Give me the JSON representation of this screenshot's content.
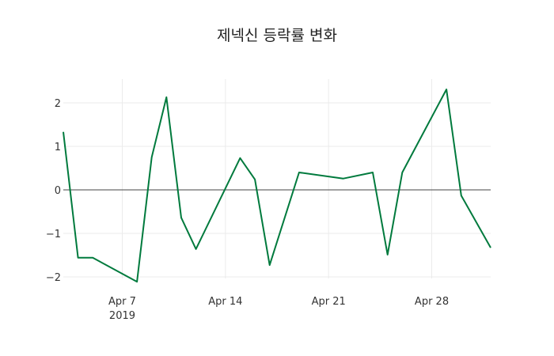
{
  "chart_data": {
    "type": "line",
    "title": "제넥신 등락률 변화",
    "xlabel": "",
    "ylabel": "",
    "x": [
      "2019-04-03",
      "2019-04-04",
      "2019-04-05",
      "2019-04-08",
      "2019-04-09",
      "2019-04-10",
      "2019-04-11",
      "2019-04-12",
      "2019-04-15",
      "2019-04-16",
      "2019-04-17",
      "2019-04-19",
      "2019-04-22",
      "2019-04-24",
      "2019-04-25",
      "2019-04-26",
      "2019-04-29",
      "2019-04-30",
      "2019-05-02"
    ],
    "series": [
      {
        "name": "등락률",
        "color": "#007a3d",
        "values": [
          1.33,
          -1.56,
          -1.56,
          -2.11,
          0.75,
          2.13,
          -0.64,
          -1.36,
          0.73,
          0.24,
          -1.73,
          0.4,
          0.26,
          0.4,
          -1.49,
          0.4,
          2.31,
          -0.13,
          -1.33
        ]
      }
    ],
    "xlim": [
      "2019-04-03",
      "2019-05-02"
    ],
    "ylim": [
      -2.3,
      2.6
    ],
    "xticks": [
      {
        "date": "2019-04-07",
        "label": "Apr 7",
        "sublabel": "2019"
      },
      {
        "date": "2019-04-14",
        "label": "Apr 14"
      },
      {
        "date": "2019-04-21",
        "label": "Apr 21"
      },
      {
        "date": "2019-04-28",
        "label": "Apr 28"
      }
    ],
    "yticks": [
      {
        "value": 2,
        "label": "2"
      },
      {
        "value": 1,
        "label": "1"
      },
      {
        "value": 0,
        "label": "0"
      },
      {
        "value": -1,
        "label": "−1"
      },
      {
        "value": -2,
        "label": "−2"
      }
    ],
    "grid": true,
    "zeroline": true
  }
}
